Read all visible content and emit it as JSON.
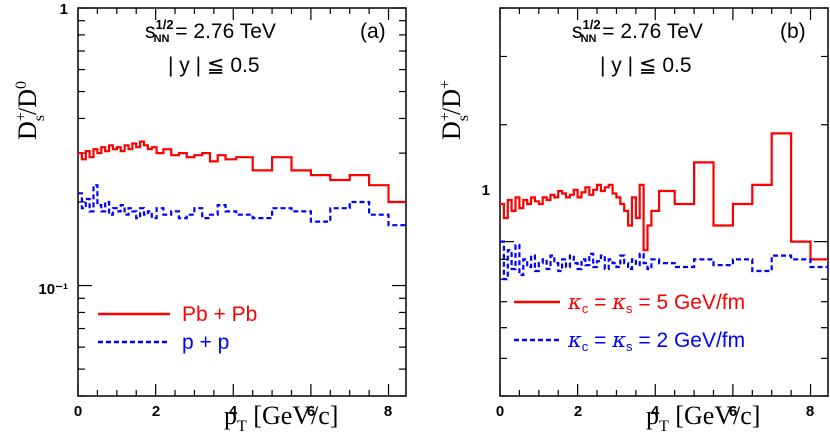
{
  "chart_data": [
    {
      "type": "line",
      "panel_label": "(a)",
      "energy_label": "2.76 TeV",
      "rapidity_label": "≦ 0.5",
      "ylabel": "D_s^+/D^0",
      "xlabel": "[GeV/c]",
      "xlim": [
        0,
        8.45
      ],
      "ylim": [
        0.04,
        1.0
      ],
      "yscale": "log",
      "xticks": [
        "0",
        "2",
        "4",
        "6",
        "8"
      ],
      "yticks": [
        "1",
        "10⁻¹"
      ],
      "legend": {
        "placement": "bottom-left",
        "entries": [
          "Pb + Pb",
          "p + p"
        ]
      },
      "colors": {
        "PbPb": "#ff0000",
        "pp": "#0000ff"
      },
      "series": [
        {
          "name": "Pb + Pb",
          "x": [
            0.05,
            0.15,
            0.25,
            0.35,
            0.45,
            0.55,
            0.65,
            0.75,
            0.85,
            0.95,
            1.05,
            1.15,
            1.25,
            1.35,
            1.45,
            1.55,
            1.65,
            1.75,
            1.85,
            1.95,
            2.1,
            2.3,
            2.5,
            2.7,
            2.9,
            3.1,
            3.3,
            3.5,
            3.7,
            3.9,
            4.25,
            4.75,
            5.25,
            5.75,
            6.25,
            6.75,
            7.25,
            7.75,
            8.25
          ],
          "values": [
            0.3,
            0.285,
            0.305,
            0.29,
            0.31,
            0.3,
            0.315,
            0.305,
            0.32,
            0.31,
            0.315,
            0.305,
            0.32,
            0.31,
            0.325,
            0.315,
            0.33,
            0.32,
            0.31,
            0.315,
            0.3,
            0.31,
            0.295,
            0.3,
            0.29,
            0.295,
            0.3,
            0.28,
            0.295,
            0.285,
            0.29,
            0.26,
            0.29,
            0.26,
            0.25,
            0.24,
            0.25,
            0.23,
            0.2
          ]
        },
        {
          "name": "p + p",
          "x": [
            0.05,
            0.15,
            0.25,
            0.35,
            0.45,
            0.55,
            0.65,
            0.75,
            0.85,
            0.95,
            1.05,
            1.15,
            1.25,
            1.35,
            1.45,
            1.55,
            1.65,
            1.75,
            1.85,
            1.95,
            2.1,
            2.3,
            2.5,
            2.7,
            2.9,
            3.1,
            3.3,
            3.5,
            3.7,
            3.9,
            4.25,
            4.75,
            5.25,
            5.75,
            6.25,
            6.75,
            7.25,
            7.75,
            8.25
          ],
          "values": [
            0.215,
            0.19,
            0.205,
            0.185,
            0.23,
            0.195,
            0.185,
            0.2,
            0.18,
            0.19,
            0.185,
            0.195,
            0.18,
            0.19,
            0.185,
            0.175,
            0.19,
            0.18,
            0.185,
            0.175,
            0.19,
            0.18,
            0.185,
            0.175,
            0.18,
            0.19,
            0.175,
            0.18,
            0.195,
            0.185,
            0.18,
            0.175,
            0.19,
            0.185,
            0.17,
            0.19,
            0.2,
            0.18,
            0.165
          ]
        }
      ]
    },
    {
      "type": "line",
      "panel_label": "(b)",
      "energy_label": "2.76 TeV",
      "rapidity_label": "≦ 0.5",
      "ylabel": "D_s^+/D^+",
      "xlabel": "[GeV/c]",
      "xlim": [
        0,
        8.45
      ],
      "ylim": [
        0.4,
        4.0
      ],
      "yscale": "log",
      "xticks": [
        "0",
        "2",
        "4",
        "6",
        "8"
      ],
      "yticks": [
        "1"
      ],
      "legend": {
        "placement": "bottom-left",
        "entries": [
          "= 5 GeV/fm",
          "= 2 GeV/fm"
        ]
      },
      "colors": {
        "k5": "#ff0000",
        "k2": "#0000ff"
      },
      "series": [
        {
          "name": "κ_c = κ_s = 5 GeV/fm",
          "x": [
            0.05,
            0.15,
            0.25,
            0.35,
            0.45,
            0.55,
            0.65,
            0.75,
            0.85,
            0.95,
            1.05,
            1.15,
            1.25,
            1.35,
            1.45,
            1.55,
            1.65,
            1.75,
            1.85,
            1.95,
            2.05,
            2.15,
            2.25,
            2.35,
            2.45,
            2.55,
            2.65,
            2.75,
            2.85,
            2.95,
            3.05,
            3.15,
            3.25,
            3.35,
            3.45,
            3.55,
            3.65,
            3.75,
            3.85,
            3.95,
            4.25,
            4.75,
            5.25,
            5.75,
            6.25,
            6.75,
            7.25,
            7.75,
            8.25
          ],
          "values": [
            1.25,
            1.15,
            1.28,
            1.2,
            1.3,
            1.22,
            1.28,
            1.25,
            1.3,
            1.27,
            1.25,
            1.3,
            1.28,
            1.32,
            1.3,
            1.35,
            1.33,
            1.3,
            1.32,
            1.36,
            1.3,
            1.34,
            1.38,
            1.32,
            1.36,
            1.4,
            1.35,
            1.38,
            1.4,
            1.33,
            1.3,
            1.25,
            1.2,
            1.1,
            1.3,
            1.15,
            1.4,
            0.95,
            1.1,
            1.2,
            1.35,
            1.25,
            1.6,
            1.1,
            1.25,
            1.4,
            1.9,
            1.0,
            0.9
          ]
        },
        {
          "name": "κ_c = κ_s = 2 GeV/fm",
          "x": [
            0.05,
            0.15,
            0.25,
            0.35,
            0.45,
            0.55,
            0.65,
            0.75,
            0.85,
            0.95,
            1.05,
            1.15,
            1.25,
            1.35,
            1.45,
            1.55,
            1.65,
            1.75,
            1.85,
            1.95,
            2.05,
            2.15,
            2.25,
            2.35,
            2.45,
            2.55,
            2.65,
            2.75,
            2.85,
            2.95,
            3.05,
            3.15,
            3.25,
            3.35,
            3.45,
            3.55,
            3.65,
            3.75,
            3.85,
            3.95,
            4.25,
            4.75,
            5.25,
            5.75,
            6.25,
            6.75,
            7.25,
            7.75,
            8.25
          ],
          "values": [
            1.0,
            0.8,
            0.95,
            0.85,
            0.98,
            0.82,
            0.9,
            0.86,
            0.92,
            0.84,
            0.88,
            0.9,
            0.85,
            0.92,
            0.88,
            0.84,
            0.9,
            0.86,
            0.92,
            0.88,
            0.85,
            0.9,
            0.87,
            0.93,
            0.86,
            0.89,
            0.92,
            0.85,
            0.9,
            0.88,
            0.86,
            0.92,
            0.88,
            0.85,
            0.9,
            0.87,
            0.93,
            0.88,
            0.85,
            0.9,
            0.88,
            0.86,
            0.9,
            0.87,
            0.9,
            0.84,
            0.92,
            0.9,
            0.86
          ]
        }
      ]
    }
  ]
}
